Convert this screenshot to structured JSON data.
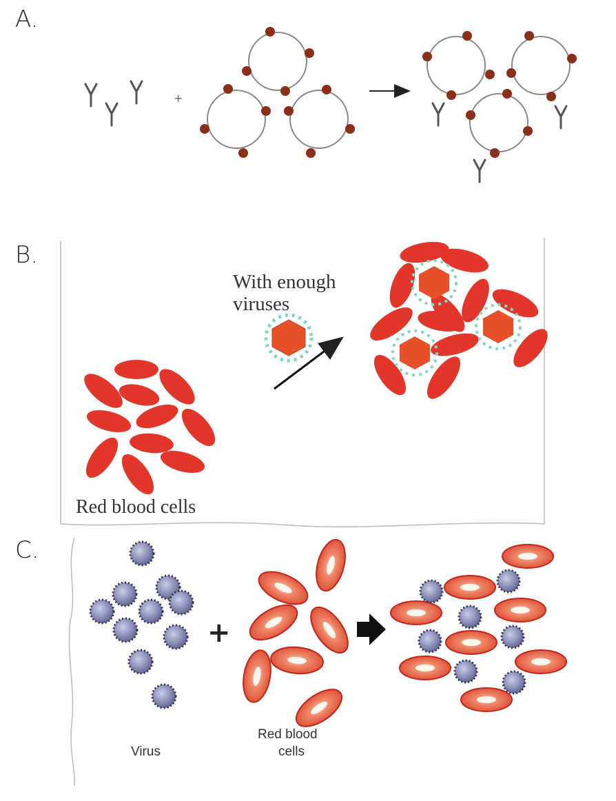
{
  "panels": {
    "a": {
      "letter": "A."
    },
    "b": {
      "letter": "B.",
      "virus_label_line1": "With enough",
      "virus_label_line2": "viruses",
      "rbc_label": "Red blood cells"
    },
    "c": {
      "letter": "C.",
      "virus_label": "Virus",
      "rbc_label_line1": "Red blood",
      "rbc_label_line2": "cells",
      "plus": "+"
    }
  },
  "colors": {
    "rbc_red": "#e2362a",
    "rbc_outline": "#c22417",
    "virus_orange": "#e8502a",
    "spike_teal": "#7fd6c4",
    "virus_purple": "#8a8fb8",
    "bead_brown": "#8b2e1a"
  }
}
